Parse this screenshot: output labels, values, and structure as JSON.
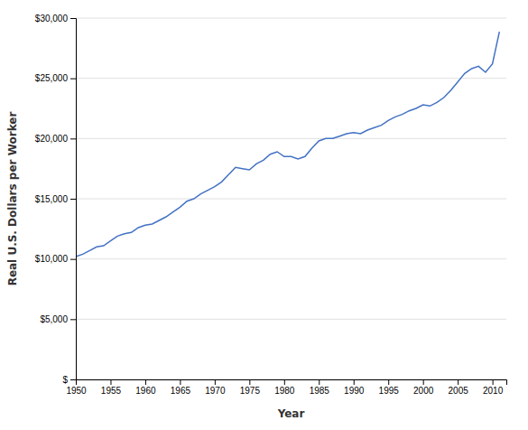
{
  "chart_data": {
    "type": "line",
    "xlabel": "Year",
    "ylabel": "Real U.S. Dollars per Worker",
    "color": "#4472c4",
    "grid": true,
    "xlim": [
      1950,
      2012
    ],
    "ylim": [
      0,
      30000
    ],
    "xticks": [
      1950,
      1955,
      1960,
      1965,
      1970,
      1975,
      1980,
      1985,
      1990,
      1995,
      2000,
      2005,
      2010
    ],
    "yticks": [
      {
        "value": 0,
        "label": "$"
      },
      {
        "value": 5000,
        "label": "$5,000"
      },
      {
        "value": 10000,
        "label": "$10,000"
      },
      {
        "value": 15000,
        "label": "$15,000"
      },
      {
        "value": 20000,
        "label": "$20,000"
      },
      {
        "value": 25000,
        "label": "$25,000"
      },
      {
        "value": 30000,
        "label": "$30,000"
      }
    ],
    "x": [
      1950,
      1951,
      1952,
      1953,
      1954,
      1955,
      1956,
      1957,
      1958,
      1959,
      1960,
      1961,
      1962,
      1963,
      1964,
      1965,
      1966,
      1967,
      1968,
      1969,
      1970,
      1971,
      1972,
      1973,
      1974,
      1975,
      1976,
      1977,
      1978,
      1979,
      1980,
      1981,
      1982,
      1983,
      1984,
      1985,
      1986,
      1987,
      1988,
      1989,
      1990,
      1991,
      1992,
      1993,
      1994,
      1995,
      1996,
      1997,
      1998,
      1999,
      2000,
      2001,
      2002,
      2003,
      2004,
      2005,
      2006,
      2007,
      2008,
      2009,
      2010,
      2011
    ],
    "values": [
      10195,
      10400,
      10700,
      11000,
      11100,
      11500,
      11900,
      12100,
      12200,
      12600,
      12800,
      12900,
      13200,
      13500,
      13900,
      14300,
      14800,
      15000,
      15400,
      15700,
      16000,
      16400,
      17000,
      17600,
      17500,
      17400,
      17900,
      18200,
      18700,
      18900,
      18500,
      18500,
      18300,
      18500,
      19200,
      19800,
      20000,
      20000,
      20200,
      20400,
      20500,
      20400,
      20700,
      20900,
      21100,
      21500,
      21800,
      22000,
      22300,
      22500,
      22800,
      22700,
      23000,
      23400,
      24000,
      24700,
      25400,
      25800,
      26000,
      25500,
      26200,
      28861
    ]
  }
}
